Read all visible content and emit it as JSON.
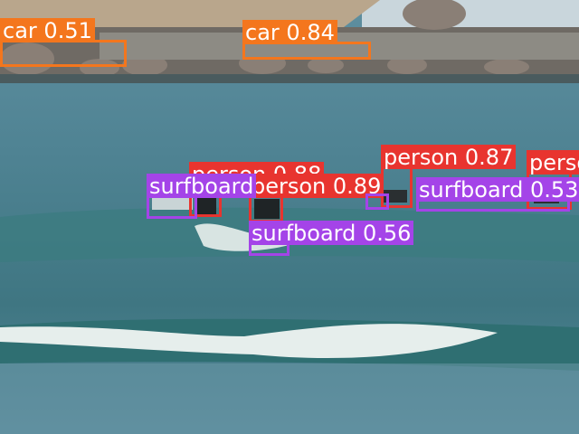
{
  "detections": [
    {
      "label": "car",
      "score": "0.51",
      "color": "#f4761d"
    },
    {
      "label": "car",
      "score": "0.84",
      "color": "#f4761d"
    },
    {
      "label": "person",
      "score": "0.88",
      "color": "#e8342f"
    },
    {
      "label": "person",
      "score": "0.89",
      "color": "#e8342f"
    },
    {
      "label": "person",
      "score": "0.87",
      "color": "#e8342f"
    },
    {
      "label": "person",
      "score": "",
      "color": "#e8342f"
    },
    {
      "label": "surfboard",
      "score": "",
      "color": "#a444e8"
    },
    {
      "label": "surfboard",
      "score": "0.56",
      "color": "#a444e8"
    },
    {
      "label": "surfboard",
      "score": "0.53",
      "color": "#a444e8"
    },
    {
      "label": "surfboard",
      "score": "",
      "color": "#a444e8"
    }
  ]
}
